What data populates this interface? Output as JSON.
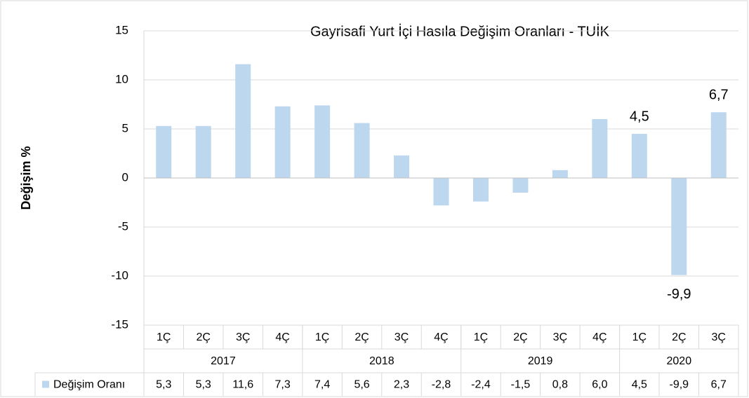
{
  "chart_data": {
    "type": "bar",
    "title": "Gayrisafi Yurt İçi Hasıla Değişim Oranları - TUİK",
    "y_label": "Değişim %",
    "groups": [
      {
        "label": "2017",
        "categories": [
          "1Ç",
          "2Ç",
          "3Ç",
          "4Ç"
        ]
      },
      {
        "label": "2018",
        "categories": [
          "1Ç",
          "2Ç",
          "3Ç",
          "4Ç"
        ]
      },
      {
        "label": "2019",
        "categories": [
          "1Ç",
          "2Ç",
          "3Ç",
          "4Ç"
        ]
      },
      {
        "label": "2020",
        "categories": [
          "1Ç",
          "2Ç",
          "3Ç"
        ]
      }
    ],
    "series": [
      {
        "name": "Değişim Oranı",
        "color": "#bdd7ee",
        "values": [
          5.3,
          5.3,
          11.6,
          7.3,
          7.4,
          5.6,
          2.3,
          -2.8,
          -2.4,
          -1.5,
          0.8,
          6.0,
          4.5,
          -9.9,
          6.7
        ],
        "value_labels": [
          "5,3",
          "5,3",
          "11,6",
          "7,3",
          "7,4",
          "5,6",
          "2,3",
          "-2,8",
          "-2,4",
          "-1,5",
          "0,8",
          "6,0",
          "4,5",
          "-9,9",
          "6,7"
        ],
        "data_labels": [
          null,
          null,
          null,
          null,
          null,
          null,
          null,
          null,
          null,
          null,
          null,
          null,
          "4,5",
          "-9,9",
          "6,7"
        ]
      }
    ],
    "ylim": [
      -15,
      15
    ],
    "yticks": [
      -15,
      -10,
      -5,
      0,
      5,
      10,
      15
    ],
    "grid": true,
    "data_table": true
  }
}
